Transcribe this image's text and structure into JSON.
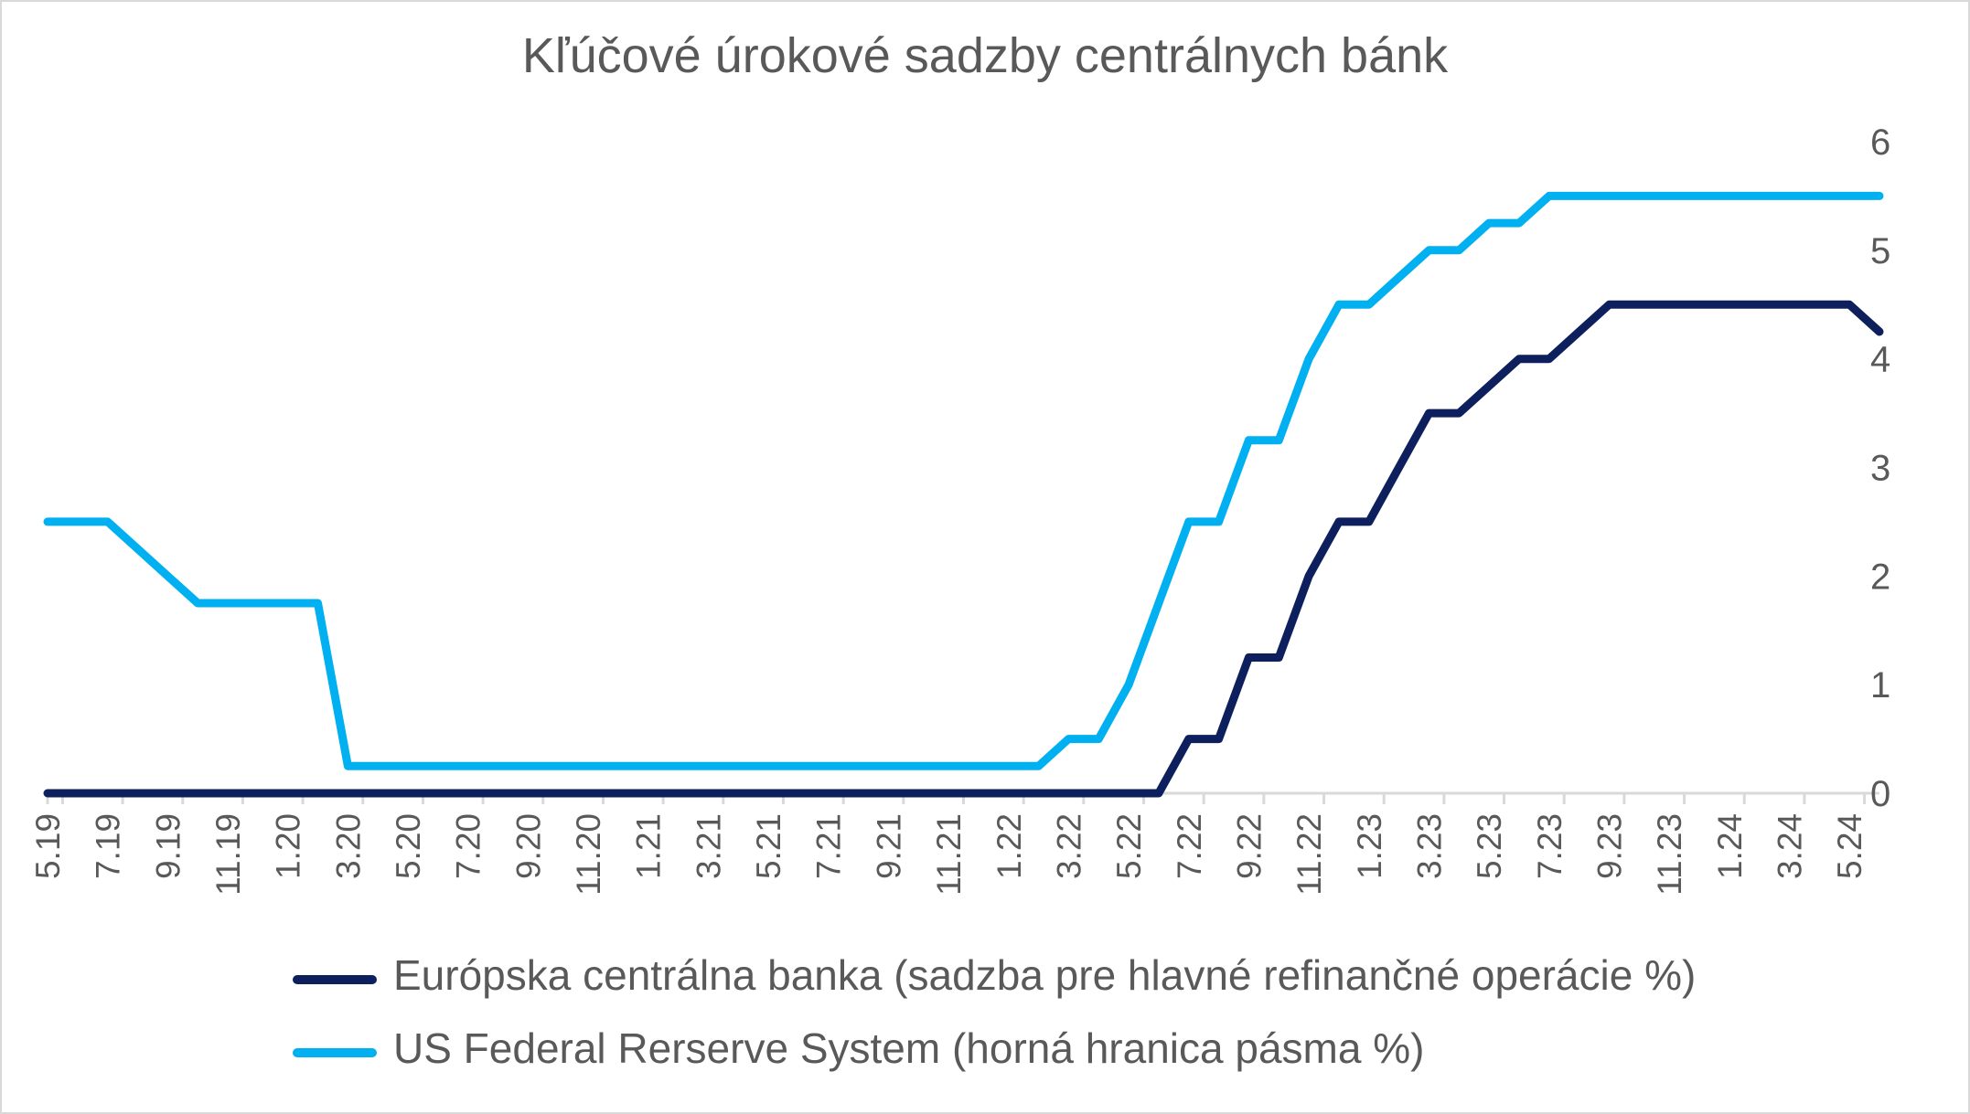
{
  "chart_data": {
    "type": "line",
    "title": "Kľúčové úrokové sadzby centrálnych bánk",
    "xlabel": "",
    "ylabel": "",
    "ylim": [
      0,
      6
    ],
    "yticks": [
      "0",
      "1",
      "2",
      "3",
      "4",
      "5",
      "6"
    ],
    "xtick_labels": [
      "5.19",
      "7.19",
      "9.19",
      "11.19",
      "1.20",
      "3.20",
      "5.20",
      "7.20",
      "9.20",
      "11.20",
      "1.21",
      "3.21",
      "5.21",
      "7.21",
      "9.21",
      "11.21",
      "1.22",
      "3.22",
      "5.22",
      "7.22",
      "9.22",
      "11.22",
      "1.23",
      "3.23",
      "5.23",
      "7.23",
      "9.23",
      "11.23",
      "1.24",
      "3.24",
      "5.24"
    ],
    "grid": false,
    "legend_position": "bottom",
    "y_axis_side": "right",
    "x": [
      "5.19",
      "6.19",
      "7.19",
      "8.19",
      "9.19",
      "10.19",
      "11.19",
      "12.19",
      "1.20",
      "2.20",
      "3.20",
      "4.20",
      "5.20",
      "6.20",
      "7.20",
      "8.20",
      "9.20",
      "10.20",
      "11.20",
      "12.20",
      "1.21",
      "2.21",
      "3.21",
      "4.21",
      "5.21",
      "6.21",
      "7.21",
      "8.21",
      "9.21",
      "10.21",
      "11.21",
      "12.21",
      "1.22",
      "2.22",
      "3.22",
      "4.22",
      "5.22",
      "6.22",
      "7.22",
      "8.22",
      "9.22",
      "10.22",
      "11.22",
      "12.22",
      "1.23",
      "2.23",
      "3.23",
      "4.23",
      "5.23",
      "6.23",
      "7.23",
      "8.23",
      "9.23",
      "10.23",
      "11.23",
      "12.23",
      "1.24",
      "2.24",
      "3.24",
      "4.24",
      "5.24",
      "6.24"
    ],
    "series": [
      {
        "name": "Európska centrálna banka (sadzba pre hlavné refinančné operácie %)",
        "color": "#0d1f5c",
        "values": [
          0,
          0,
          0,
          0,
          0,
          0,
          0,
          0,
          0,
          0,
          0,
          0,
          0,
          0,
          0,
          0,
          0,
          0,
          0,
          0,
          0,
          0,
          0,
          0,
          0,
          0,
          0,
          0,
          0,
          0,
          0,
          0,
          0,
          0,
          0,
          0,
          0,
          0,
          0.5,
          0.5,
          1.25,
          1.25,
          2,
          2.5,
          2.5,
          3,
          3.5,
          3.5,
          3.75,
          4,
          4,
          4.25,
          4.5,
          4.5,
          4.5,
          4.5,
          4.5,
          4.5,
          4.5,
          4.5,
          4.5,
          4.25
        ]
      },
      {
        "name": "US Federal Rerserve System (horná hranica pásma %)",
        "color": "#00b0f0",
        "values": [
          2.5,
          2.5,
          2.5,
          2.25,
          2,
          1.75,
          1.75,
          1.75,
          1.75,
          1.75,
          0.25,
          0.25,
          0.25,
          0.25,
          0.25,
          0.25,
          0.25,
          0.25,
          0.25,
          0.25,
          0.25,
          0.25,
          0.25,
          0.25,
          0.25,
          0.25,
          0.25,
          0.25,
          0.25,
          0.25,
          0.25,
          0.25,
          0.25,
          0.25,
          0.5,
          0.5,
          1,
          1.75,
          2.5,
          2.5,
          3.25,
          3.25,
          4,
          4.5,
          4.5,
          4.75,
          5,
          5,
          5.25,
          5.25,
          5.5,
          5.5,
          5.5,
          5.5,
          5.5,
          5.5,
          5.5,
          5.5,
          5.5,
          5.5,
          5.5,
          5.5
        ]
      }
    ]
  }
}
